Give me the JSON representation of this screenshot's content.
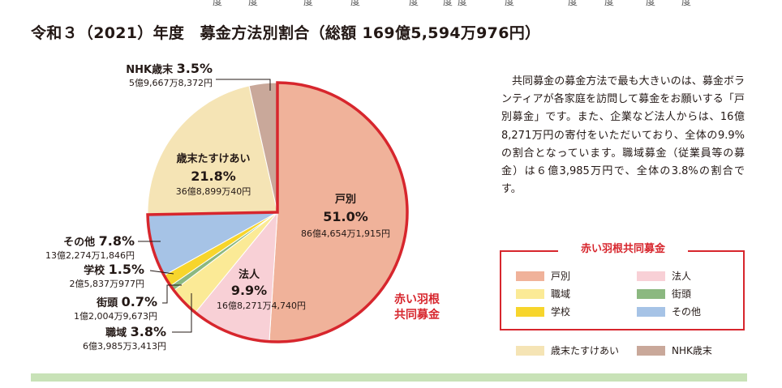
{
  "header": {
    "title": "令和３（2021）年度　募金方法別割合（総額 169億5,594万976円）",
    "strip_glyphs": [
      "度",
      "度",
      "度",
      "度",
      "度",
      "度",
      "度",
      "度",
      "度",
      "度",
      "度",
      "度"
    ]
  },
  "description": "共同募金の募金方法で最も大きいのは、募金ボランティアが各家庭を訪問して募金をお願いする「戸別募金」です。また、企業など法人からは、16億8,271万円の寄付をいただいており、全体の9.9%の割合となっています。職域募金（従業員等の募金）は６億3,985万円で、全体の3.8%の割合です。",
  "red_group_label": "赤い羽根\n共同募金",
  "legend": {
    "title": "赤い羽根共同募金",
    "items": [
      {
        "label": "戸別",
        "color": "#f0b29a"
      },
      {
        "label": "法人",
        "color": "#f8d0d6"
      },
      {
        "label": "職域",
        "color": "#fbea96"
      },
      {
        "label": "街頭",
        "color": "#8bb880"
      },
      {
        "label": "学校",
        "color": "#f7d52c"
      },
      {
        "label": "その他",
        "color": "#a6c3e6"
      }
    ],
    "outside": [
      {
        "label": "歳末たすけあい",
        "color": "#f5e4b5"
      },
      {
        "label": "NHK歳末",
        "color": "#c9a89a"
      }
    ]
  },
  "chart_data": {
    "type": "pie",
    "title": "令和３（2021）年度　募金方法別割合",
    "total": "169億5,594万976円",
    "slices": [
      {
        "name": "戸別",
        "percent": 51.0,
        "percent_label": "51.0%",
        "amount": "86億4,654万1,915円",
        "color": "#f0b29a"
      },
      {
        "name": "法人",
        "percent": 9.9,
        "percent_label": "9.9%",
        "amount": "16億8,271万4,740円",
        "color": "#f8d0d6"
      },
      {
        "name": "職域",
        "percent": 3.8,
        "percent_label": "3.8%",
        "amount": "6億3,985万3,413円",
        "color": "#fbea96"
      },
      {
        "name": "街頭",
        "percent": 0.7,
        "percent_label": "0.7%",
        "amount": "1億2,004万9,673円",
        "color": "#8bb880"
      },
      {
        "name": "学校",
        "percent": 1.5,
        "percent_label": "1.5%",
        "amount": "2億5,837万977円",
        "color": "#f7d52c"
      },
      {
        "name": "その他",
        "percent": 7.8,
        "percent_label": "7.8%",
        "amount": "13億2,274万1,846円",
        "color": "#a6c3e6"
      },
      {
        "name": "歳末たすけあい",
        "percent": 21.8,
        "percent_label": "21.8%",
        "amount": "36億8,899万40円",
        "color": "#f5e4b5"
      },
      {
        "name": "NHK歳末",
        "percent": 3.5,
        "percent_label": "3.5%",
        "amount": "5億9,667万8,372円",
        "color": "#c9a89a"
      }
    ]
  }
}
